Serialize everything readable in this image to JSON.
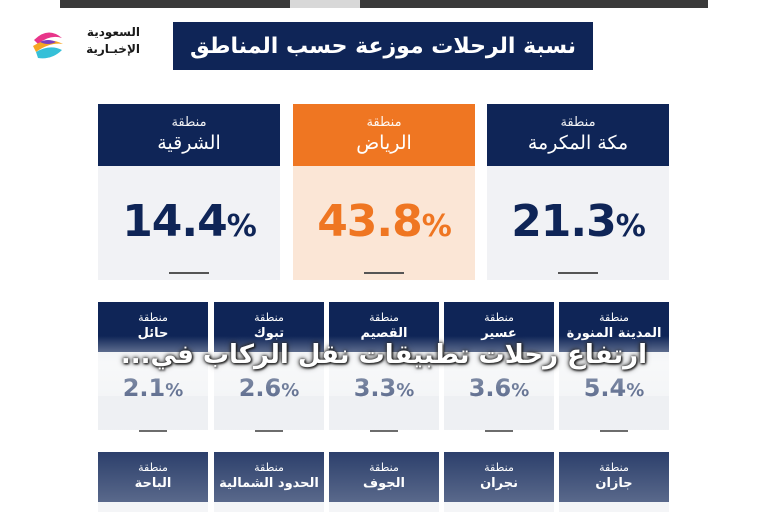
{
  "logo": {
    "line1": "السعودية",
    "line2": "الإخبـارية"
  },
  "title": "نسبة الرحلات موزعة حسب المناطق",
  "region_word": "منطقة",
  "top_regions": [
    {
      "name": "الشرقية",
      "value": "14.4"
    },
    {
      "name": "الرياض",
      "value": "43.8"
    },
    {
      "name": "مكة المكرمة",
      "value": "21.3"
    }
  ],
  "mid_regions": [
    {
      "name": "حائل",
      "value": "2.1"
    },
    {
      "name": "تبوك",
      "value": "2.6"
    },
    {
      "name": "القصيم",
      "value": "3.3"
    },
    {
      "name": "عسير",
      "value": "3.6"
    },
    {
      "name": "المدينة المنورة",
      "value": "5.4"
    }
  ],
  "bottom_regions": [
    {
      "name": "الباحة"
    },
    {
      "name": "الحدود الشمالية"
    },
    {
      "name": "الجوف"
    },
    {
      "name": "نجران"
    },
    {
      "name": "جازان"
    }
  ],
  "percent_sign": "%",
  "caption": "ارتفاع رحلات تطبيقات نقل الركاب في...",
  "colors": {
    "navy": "#0f2557",
    "orange": "#ef7622",
    "card_bg": "#f1f2f5"
  }
}
